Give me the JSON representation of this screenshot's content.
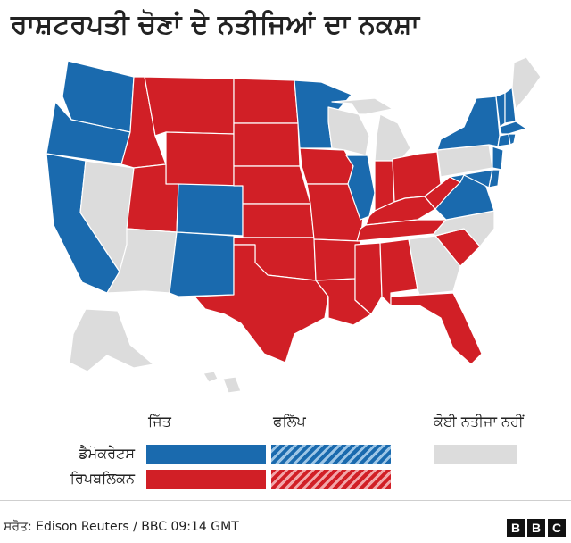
{
  "title": "ਰਾਸ਼ਟਰਪਤੀ ਚੋਣਾਂ ਦੇ ਨਤੀਜਿਆਂ ਦਾ ਨਕਸ਼ਾ",
  "colors": {
    "democrat": "#1a6aae",
    "republican": "#d11f26",
    "no_result": "#dcdcdc",
    "border": "#ffffff"
  },
  "legend": {
    "col_win": "ਜਿੱਤ",
    "col_flip": "ਫਲਿੱਪ",
    "col_none": "ਕੋਈ ਨਤੀਜਾ ਨਹੀਂ",
    "row_dem": "ਡੈਮੋਕਰੇਟਸ",
    "row_rep": "ਰਿਪਬਲਿਕਨ"
  },
  "states": {
    "democrat": [
      "WA",
      "OR",
      "CA",
      "CO",
      "NM",
      "MN",
      "IL",
      "VA",
      "NY",
      "VT",
      "ME",
      "MA",
      "CT",
      "RI",
      "NJ",
      "DE",
      "MD",
      "NH"
    ],
    "republican": [
      "ID",
      "MT",
      "WY",
      "UT",
      "ND",
      "SD",
      "NE",
      "KS",
      "OK",
      "TX",
      "MO",
      "IA",
      "AR",
      "LA",
      "MS",
      "AL",
      "TN",
      "KY",
      "IN",
      "OH",
      "WV",
      "SC",
      "FL"
    ],
    "no_result": [
      "NV",
      "AZ",
      "MI",
      "WI",
      "PA",
      "NC",
      "GA",
      "AK",
      "HI"
    ]
  },
  "source": "ਸਰੋਤ: Edison Reuters / BBC 09:14 GMT",
  "brand": [
    "B",
    "B",
    "C"
  ]
}
